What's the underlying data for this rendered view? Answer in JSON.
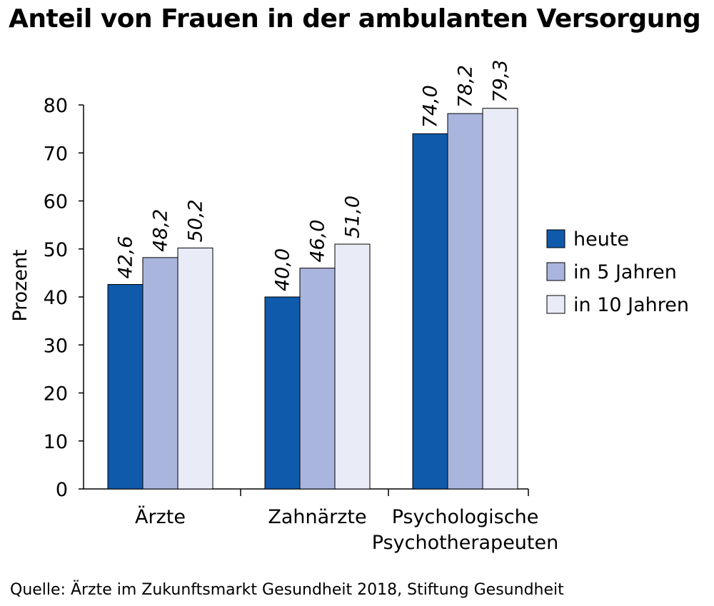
{
  "title": "Anteil von Frauen in der ambulanten Versorgung",
  "source": "Quelle: Ärzte im Zukunftsmarkt Gesundheit 2018, Stiftung Gesundheit",
  "chart_data": {
    "type": "bar",
    "title": "Anteil von Frauen in der ambulanten Versorgung",
    "xlabel": "",
    "ylabel": "Prozent",
    "ylim": [
      0,
      80
    ],
    "yticks": [
      0,
      10,
      20,
      30,
      40,
      50,
      60,
      70,
      80
    ],
    "grid": false,
    "legend_position": "right",
    "categories": [
      [
        "Ärzte"
      ],
      [
        "Zahnärzte"
      ],
      [
        "Psychologische",
        "Psychotherapeuten"
      ]
    ],
    "series": [
      {
        "name": "heute",
        "color": "#0f5aab",
        "values": [
          42.6,
          40.0,
          74.0
        ],
        "labels": [
          "42,6",
          "40,0",
          "74,0"
        ]
      },
      {
        "name": "in 5 Jahren",
        "color": "#aab5de",
        "values": [
          48.2,
          46.0,
          78.2
        ],
        "labels": [
          "48,2",
          "46,0",
          "78,2"
        ]
      },
      {
        "name": "in 10 Jahren",
        "color": "#e9ebf7",
        "values": [
          50.2,
          51.0,
          79.3
        ],
        "labels": [
          "50,2",
          "51,0",
          "79,3"
        ]
      }
    ]
  }
}
